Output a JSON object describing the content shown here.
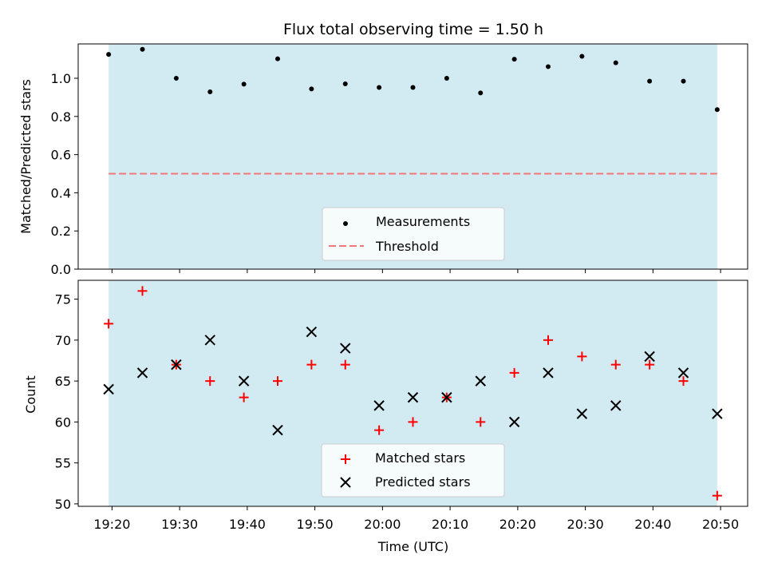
{
  "chart_data": [
    {
      "type": "scatter",
      "title": "Flux total observing time = 1.50 h",
      "ylabel": "Matched/Predicted stars",
      "ylim": [
        0.0,
        1.18
      ],
      "yticks": [
        "0.0",
        "0.2",
        "0.4",
        "0.6",
        "0.8",
        "1.0"
      ],
      "x": [
        "19:19:30",
        "19:24:30",
        "19:29:30",
        "19:34:30",
        "19:39:30",
        "19:44:30",
        "19:49:30",
        "19:54:30",
        "19:59:30",
        "20:04:30",
        "20:09:30",
        "20:14:30",
        "20:19:30",
        "20:24:30",
        "20:29:30",
        "20:34:30",
        "20:39:30",
        "20:44:30",
        "20:49:30"
      ],
      "series": [
        {
          "name": "Measurements",
          "values": [
            1.125,
            1.152,
            1.0,
            0.929,
            0.969,
            1.102,
            0.944,
            0.971,
            0.952,
            0.952,
            1.0,
            0.923,
            1.1,
            1.061,
            1.115,
            1.081,
            0.985,
            0.985,
            0.836
          ]
        }
      ],
      "threshold": {
        "name": "Threshold",
        "value": 0.5
      },
      "shaded_span": [
        "19:19:30",
        "20:49:30"
      ],
      "legend_position": "lower center",
      "colors": {
        "measurements": "#000000",
        "threshold": "#f07878",
        "span": "#add8e6"
      }
    },
    {
      "type": "scatter",
      "xlabel": "Time (UTC)",
      "ylabel": "Count",
      "ylim": [
        49.7,
        77.3
      ],
      "yticks": [
        "50",
        "55",
        "60",
        "65",
        "70",
        "75"
      ],
      "xticks": [
        "19:20",
        "19:30",
        "19:40",
        "19:50",
        "20:00",
        "20:10",
        "20:20",
        "20:30",
        "20:40",
        "20:50"
      ],
      "x": [
        "19:19:30",
        "19:24:30",
        "19:29:30",
        "19:34:30",
        "19:39:30",
        "19:44:30",
        "19:49:30",
        "19:54:30",
        "19:59:30",
        "20:04:30",
        "20:09:30",
        "20:14:30",
        "20:19:30",
        "20:24:30",
        "20:29:30",
        "20:34:30",
        "20:39:30",
        "20:44:30",
        "20:49:30"
      ],
      "series": [
        {
          "name": "Matched stars",
          "marker": "plus",
          "values": [
            72,
            76,
            67,
            65,
            63,
            65,
            67,
            67,
            59,
            60,
            63,
            60,
            66,
            70,
            68,
            67,
            67,
            65,
            51
          ]
        },
        {
          "name": "Predicted stars",
          "marker": "x",
          "values": [
            64,
            66,
            67,
            70,
            65,
            59,
            71,
            69,
            62,
            63,
            63,
            65,
            60,
            66,
            61,
            62,
            68,
            66,
            61
          ]
        }
      ],
      "shaded_span": [
        "19:19:30",
        "20:49:30"
      ],
      "legend_position": "lower center",
      "colors": {
        "matched": "#ff0000",
        "predicted": "#000000",
        "span": "#add8e6"
      }
    }
  ]
}
